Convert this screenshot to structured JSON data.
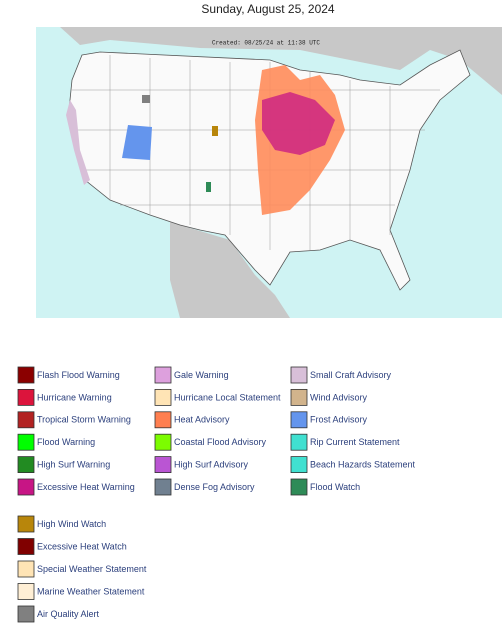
{
  "header": {
    "title": "Sunday, August 25, 2024"
  },
  "map": {
    "created": "Created: 08/25/24 at 11:38 UTC"
  },
  "legend": {
    "groups": [
      {
        "items": [
          {
            "label": "Flash Flood Warning",
            "color": "#8b0000"
          },
          {
            "label": "Hurricane Warning",
            "color": "#dc143c"
          },
          {
            "label": "Tropical Storm Warning",
            "color": "#b22222"
          },
          {
            "label": "Flood Warning",
            "color": "#00ff00"
          },
          {
            "label": "High Surf Warning",
            "color": "#228b22"
          },
          {
            "label": "Excessive Heat Warning",
            "color": "#c71585"
          },
          {
            "label": "Gale Warning",
            "color": "#dda0dd"
          },
          {
            "label": "Hurricane Local Statement",
            "color": "#ffe4b5"
          },
          {
            "label": "Heat Advisory",
            "color": "#ff7f50"
          },
          {
            "label": "Coastal Flood Advisory",
            "color": "#7cfc00"
          },
          {
            "label": "High Surf Advisory",
            "color": "#ba55d3"
          },
          {
            "label": "Dense Fog Advisory",
            "color": "#708090"
          },
          {
            "label": "Small Craft Advisory",
            "color": "#d8bfd8"
          },
          {
            "label": "Wind Advisory",
            "color": "#d2b48c"
          },
          {
            "label": "Frost Advisory",
            "color": "#6495ed"
          },
          {
            "label": "Rip Current Statement",
            "color": "#40e0d0"
          },
          {
            "label": "Beach Hazards Statement",
            "color": "#40e0d0"
          },
          {
            "label": "Flood Watch",
            "color": "#2e8b57"
          }
        ]
      },
      {
        "items": [
          {
            "label": "High Wind Watch",
            "color": "#b8860b"
          },
          {
            "label": "Excessive Heat Watch",
            "color": "#800000"
          },
          {
            "label": "Special Weather Statement",
            "color": "#ffe4b5"
          },
          {
            "label": "Marine Weather Statement",
            "color": "#ffefd5"
          },
          {
            "label": "Air Quality Alert",
            "color": "#808080"
          }
        ]
      }
    ]
  }
}
